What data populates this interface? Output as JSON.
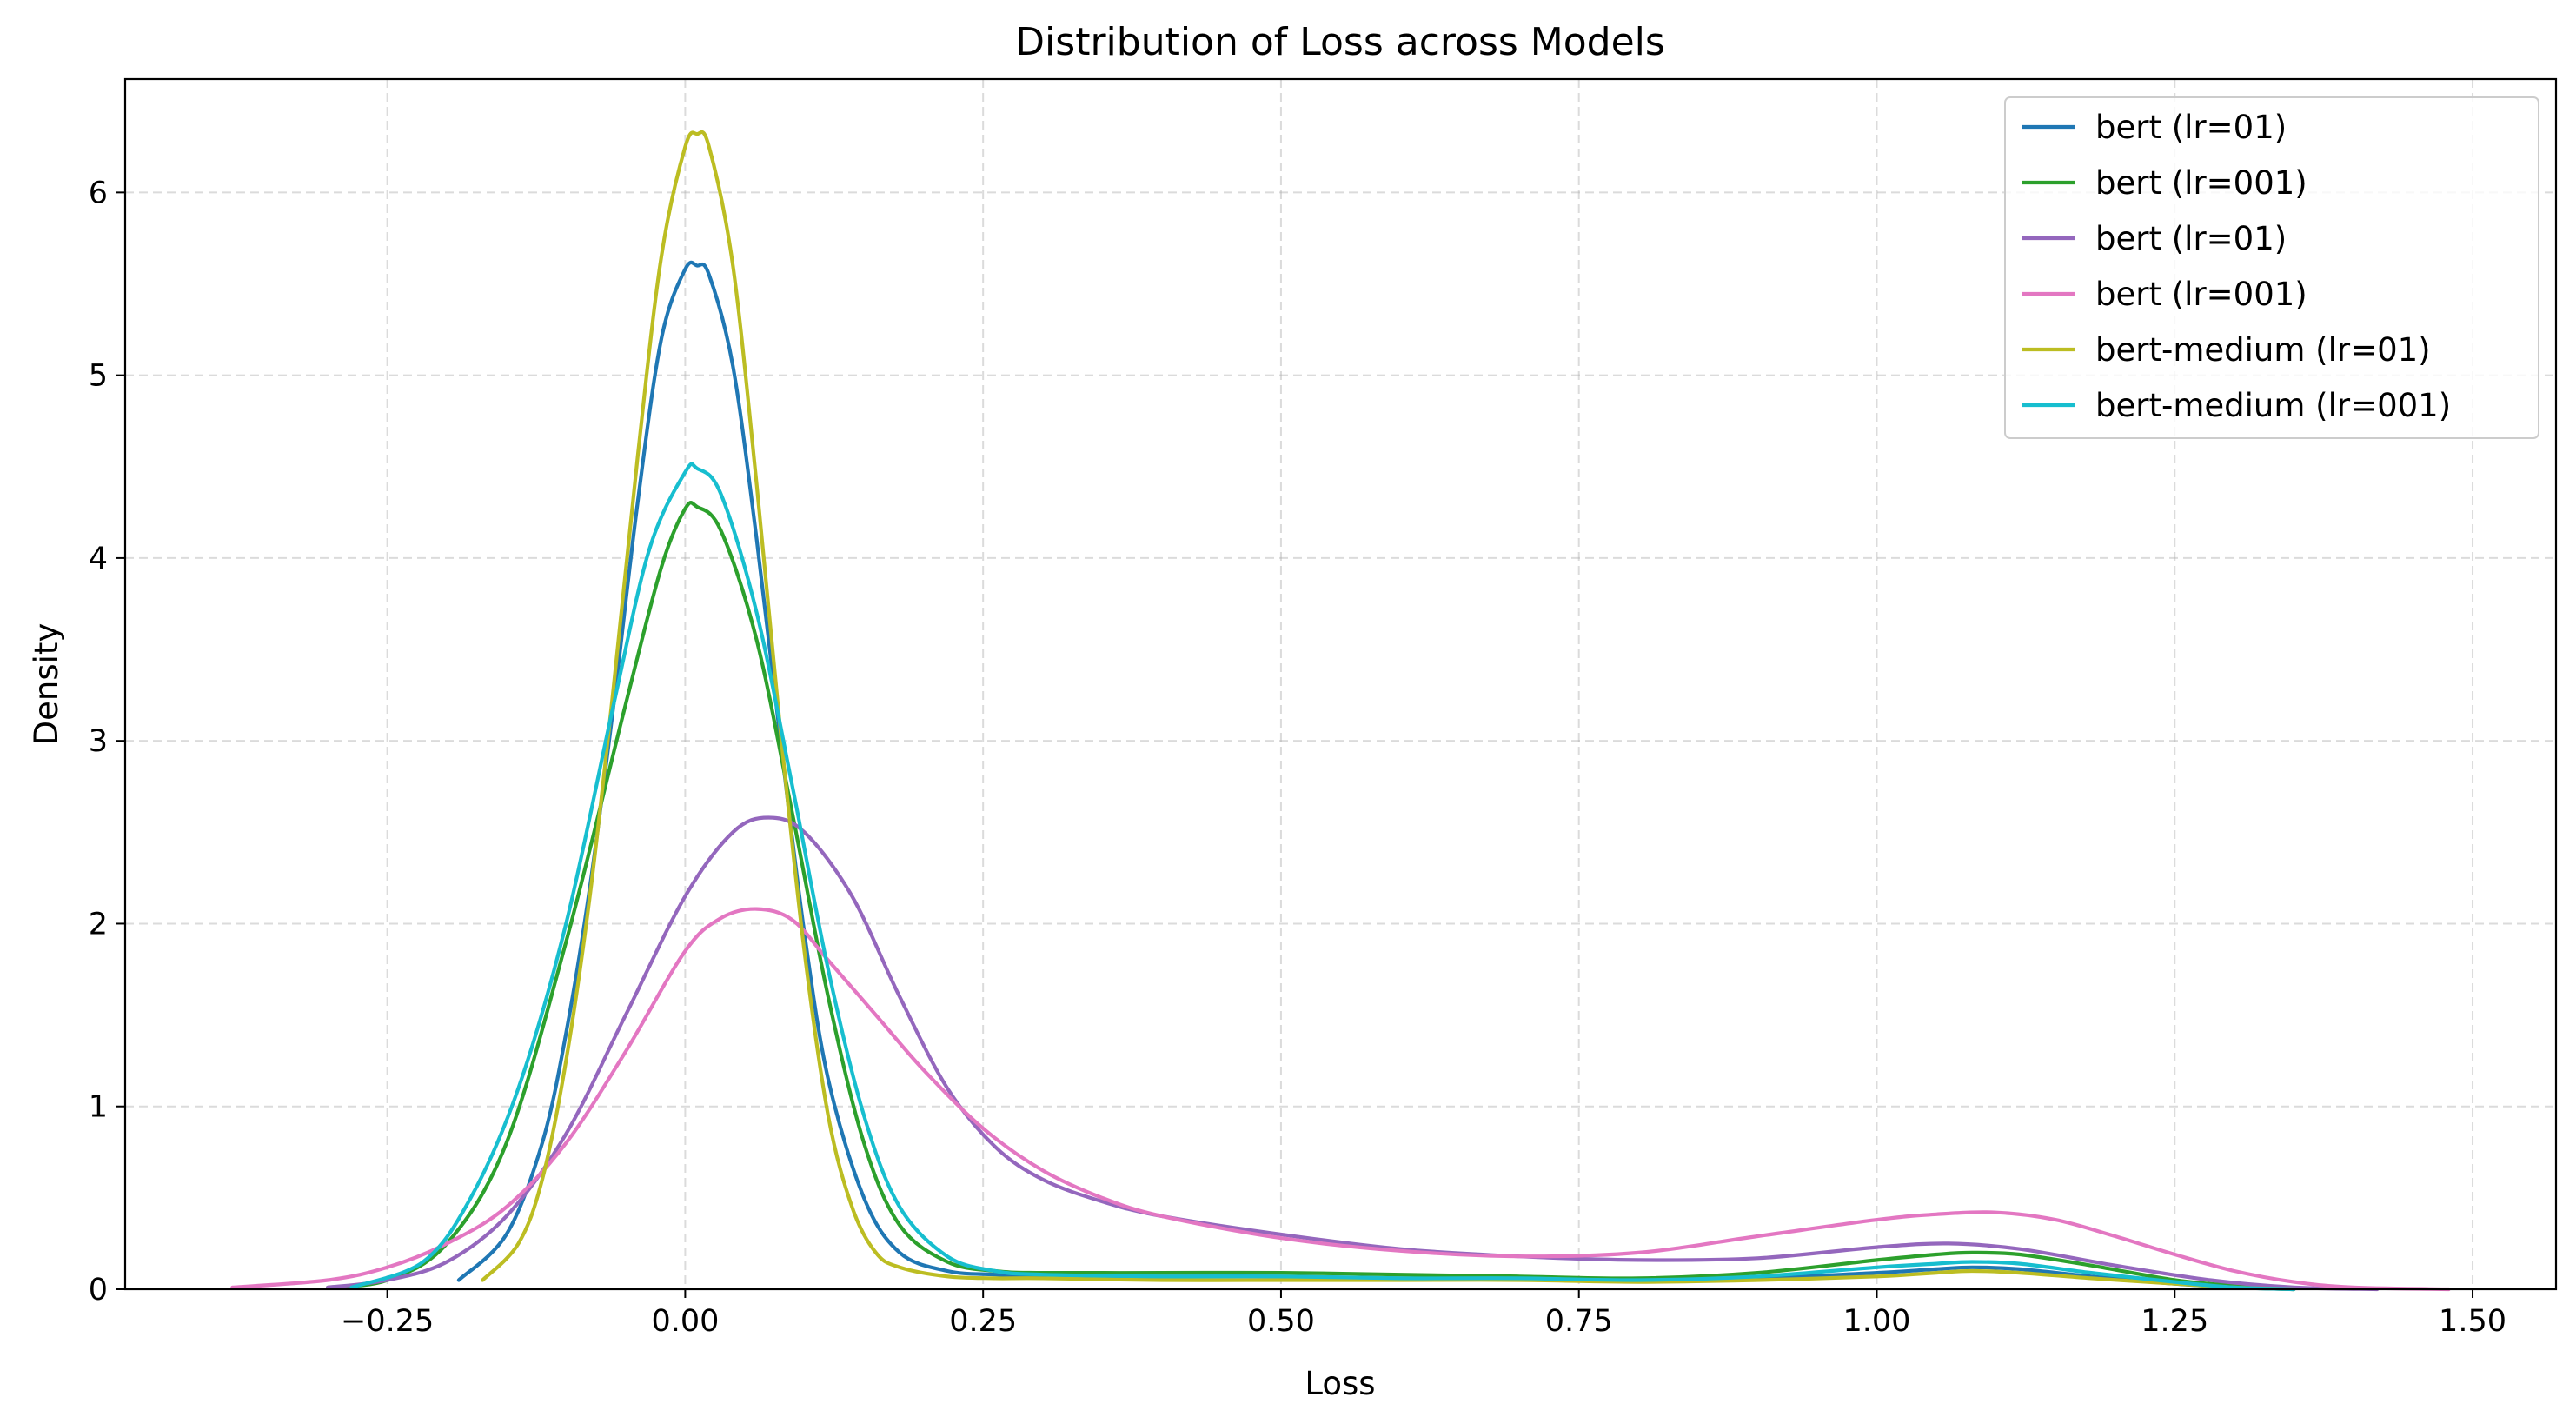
{
  "chart_data": {
    "type": "line",
    "title": "Distribution of Loss across Models",
    "xlabel": "Loss",
    "ylabel": "Density",
    "xlim": [
      -0.47,
      1.57
    ],
    "ylim": [
      0,
      6.62
    ],
    "xticks": [
      -0.25,
      0.0,
      0.25,
      0.5,
      0.75,
      1.0,
      1.25,
      1.5
    ],
    "xtick_labels": [
      "−0.25",
      "0.00",
      "0.25",
      "0.50",
      "0.75",
      "1.00",
      "1.25",
      "1.50"
    ],
    "yticks": [
      0,
      1,
      2,
      3,
      4,
      5,
      6
    ],
    "ytick_labels": [
      "0",
      "1",
      "2",
      "3",
      "4",
      "5",
      "6"
    ],
    "grid": true,
    "legend_position": "top-right",
    "series": [
      {
        "name": "bert (lr=01)",
        "color": "#1f77b4",
        "x": [
          -0.19,
          -0.15,
          -0.12,
          -0.1,
          -0.08,
          -0.06,
          -0.04,
          -0.02,
          0.0,
          0.01,
          0.02,
          0.04,
          0.06,
          0.08,
          0.1,
          0.12,
          0.15,
          0.18,
          0.22,
          0.26,
          0.3,
          0.4,
          0.5,
          0.6,
          0.7,
          0.8,
          0.9,
          1.0,
          1.05,
          1.08,
          1.12,
          1.18,
          1.25,
          1.3,
          1.35
        ],
        "y": [
          0.05,
          0.3,
          0.8,
          1.4,
          2.2,
          3.2,
          4.3,
          5.2,
          5.58,
          5.6,
          5.55,
          5.05,
          4.1,
          3.0,
          1.95,
          1.15,
          0.5,
          0.2,
          0.1,
          0.08,
          0.07,
          0.07,
          0.07,
          0.06,
          0.06,
          0.05,
          0.06,
          0.09,
          0.11,
          0.12,
          0.11,
          0.07,
          0.03,
          0.01,
          0.0
        ]
      },
      {
        "name": "bert (lr=001)",
        "color": "#2ca02c",
        "x": [
          -0.3,
          -0.25,
          -0.2,
          -0.15,
          -0.1,
          -0.05,
          -0.02,
          0.0,
          0.01,
          0.03,
          0.06,
          0.09,
          0.12,
          0.15,
          0.18,
          0.22,
          0.26,
          0.3,
          0.4,
          0.5,
          0.6,
          0.7,
          0.8,
          0.9,
          1.0,
          1.05,
          1.08,
          1.12,
          1.18,
          1.25,
          1.3,
          1.35
        ],
        "y": [
          0.01,
          0.05,
          0.25,
          0.8,
          1.9,
          3.2,
          3.95,
          4.27,
          4.28,
          4.15,
          3.55,
          2.6,
          1.6,
          0.8,
          0.35,
          0.15,
          0.1,
          0.09,
          0.09,
          0.09,
          0.08,
          0.07,
          0.06,
          0.09,
          0.16,
          0.19,
          0.2,
          0.19,
          0.13,
          0.05,
          0.02,
          0.0
        ]
      },
      {
        "name": "bert (lr=01)",
        "color": "#9467bd",
        "x": [
          -0.3,
          -0.25,
          -0.2,
          -0.15,
          -0.1,
          -0.05,
          0.0,
          0.04,
          0.07,
          0.1,
          0.14,
          0.18,
          0.22,
          0.26,
          0.3,
          0.35,
          0.4,
          0.5,
          0.6,
          0.7,
          0.8,
          0.9,
          1.0,
          1.06,
          1.12,
          1.2,
          1.28,
          1.35,
          1.42
        ],
        "y": [
          0.01,
          0.05,
          0.15,
          0.4,
          0.85,
          1.5,
          2.15,
          2.5,
          2.58,
          2.5,
          2.15,
          1.6,
          1.1,
          0.78,
          0.6,
          0.48,
          0.4,
          0.3,
          0.22,
          0.18,
          0.16,
          0.17,
          0.23,
          0.25,
          0.22,
          0.13,
          0.05,
          0.01,
          0.0
        ]
      },
      {
        "name": "bert (lr=001)",
        "color": "#e377c2",
        "x": [
          -0.38,
          -0.3,
          -0.25,
          -0.2,
          -0.15,
          -0.1,
          -0.05,
          0.0,
          0.03,
          0.06,
          0.09,
          0.12,
          0.16,
          0.2,
          0.25,
          0.3,
          0.35,
          0.4,
          0.5,
          0.6,
          0.7,
          0.8,
          0.9,
          1.0,
          1.05,
          1.1,
          1.15,
          1.2,
          1.25,
          1.3,
          1.35,
          1.4,
          1.48
        ],
        "y": [
          0.01,
          0.05,
          0.12,
          0.25,
          0.45,
          0.8,
          1.3,
          1.85,
          2.03,
          2.08,
          2.02,
          1.8,
          1.5,
          1.2,
          0.88,
          0.65,
          0.5,
          0.4,
          0.28,
          0.21,
          0.18,
          0.2,
          0.29,
          0.38,
          0.41,
          0.42,
          0.38,
          0.29,
          0.19,
          0.1,
          0.04,
          0.01,
          0.0
        ]
      },
      {
        "name": "bert-medium (lr=01)",
        "color": "#bcbd22",
        "x": [
          -0.17,
          -0.14,
          -0.12,
          -0.1,
          -0.08,
          -0.06,
          -0.04,
          -0.02,
          0.0,
          0.01,
          0.02,
          0.04,
          0.06,
          0.08,
          0.1,
          0.12,
          0.14,
          0.16,
          0.18,
          0.22,
          0.26,
          0.3,
          0.4,
          0.5,
          0.6,
          0.7,
          0.8,
          0.9,
          1.0,
          1.05,
          1.08,
          1.12,
          1.18,
          1.25,
          1.3,
          1.35
        ],
        "y": [
          0.05,
          0.25,
          0.6,
          1.25,
          2.15,
          3.3,
          4.55,
          5.65,
          6.25,
          6.32,
          6.25,
          5.6,
          4.4,
          3.05,
          1.85,
          0.95,
          0.45,
          0.2,
          0.12,
          0.07,
          0.06,
          0.06,
          0.05,
          0.05,
          0.05,
          0.05,
          0.04,
          0.05,
          0.07,
          0.09,
          0.1,
          0.09,
          0.06,
          0.03,
          0.01,
          0.0
        ]
      },
      {
        "name": "bert-medium (lr=001)",
        "color": "#17becf",
        "x": [
          -0.28,
          -0.22,
          -0.18,
          -0.14,
          -0.1,
          -0.06,
          -0.03,
          0.0,
          0.01,
          0.03,
          0.06,
          0.09,
          0.12,
          0.15,
          0.18,
          0.22,
          0.26,
          0.3,
          0.4,
          0.5,
          0.6,
          0.7,
          0.8,
          0.9,
          1.0,
          1.05,
          1.08,
          1.12,
          1.18,
          1.25,
          1.3,
          1.35
        ],
        "y": [
          0.01,
          0.15,
          0.5,
          1.1,
          2.0,
          3.2,
          4.05,
          4.47,
          4.49,
          4.35,
          3.7,
          2.75,
          1.75,
          0.95,
          0.45,
          0.18,
          0.1,
          0.08,
          0.07,
          0.07,
          0.06,
          0.06,
          0.05,
          0.07,
          0.12,
          0.14,
          0.15,
          0.14,
          0.09,
          0.04,
          0.01,
          0.0
        ]
      }
    ]
  }
}
